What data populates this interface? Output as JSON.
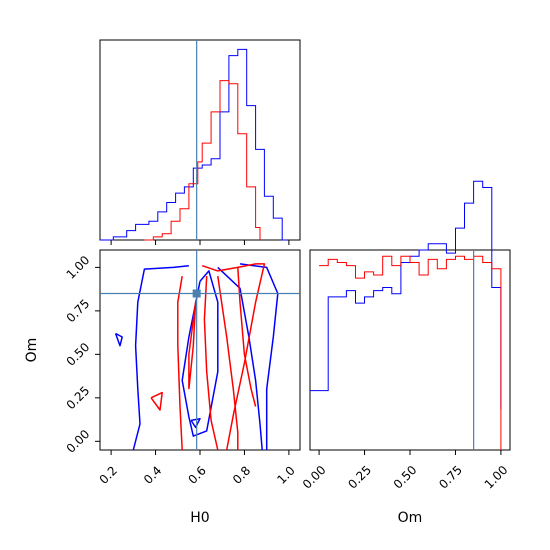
{
  "chart_data": [
    {
      "panel": "H0 marginal",
      "type": "step-histogram",
      "xlim": [
        0.15,
        1.05
      ],
      "truth": 0.585,
      "series": [
        {
          "color": "#0000ff",
          "x": [
            0.15,
            0.17,
            0.19,
            0.21,
            0.23,
            0.25,
            0.27,
            0.29,
            0.31,
            0.33,
            0.35,
            0.37,
            0.39,
            0.41,
            0.43,
            0.45,
            0.47,
            0.49,
            0.51,
            0.53,
            0.55,
            0.57,
            0.59,
            0.61,
            0.63,
            0.65,
            0.67,
            0.69,
            0.71,
            0.73,
            0.75,
            0.77,
            0.79,
            0.81,
            0.83,
            0.85,
            0.87,
            0.89,
            0.91,
            0.93,
            0.95,
            0.97,
            0.99
          ],
          "values": [
            0,
            0,
            0,
            0.01,
            0.01,
            0.01,
            0.03,
            0.03,
            0.05,
            0.05,
            0.05,
            0.06,
            0.06,
            0.09,
            0.09,
            0.12,
            0.12,
            0.15,
            0.15,
            0.17,
            0.17,
            0.23,
            0.23,
            0.24,
            0.24,
            0.26,
            0.26,
            0.41,
            0.41,
            0.59,
            0.59,
            0.61,
            0.61,
            0.43,
            0.43,
            0.29,
            0.29,
            0.14,
            0.14,
            0.07,
            0.07,
            0,
            0
          ]
        },
        {
          "color": "#ff0000",
          "x": [
            0.35,
            0.37,
            0.39,
            0.41,
            0.43,
            0.45,
            0.47,
            0.49,
            0.51,
            0.53,
            0.55,
            0.57,
            0.59,
            0.61,
            0.63,
            0.65,
            0.67,
            0.69,
            0.71,
            0.73,
            0.75,
            0.77,
            0.79,
            0.81,
            0.83,
            0.85,
            0.87
          ],
          "values": [
            0,
            0,
            0.01,
            0.01,
            0.02,
            0.02,
            0.06,
            0.06,
            0.1,
            0.1,
            0.18,
            0.18,
            0.25,
            0.31,
            0.31,
            0.41,
            0.41,
            0.51,
            0.51,
            0.5,
            0.5,
            0.34,
            0.34,
            0.17,
            0.17,
            0.04,
            0
          ]
        }
      ]
    },
    {
      "panel": "Om marginal",
      "type": "step-histogram",
      "xlim": [
        -0.05,
        1.05
      ],
      "truth": 0.85,
      "xlabel": "Om",
      "xticks": [
        "0.00",
        "0.25",
        "0.50",
        "0.75",
        "1.00"
      ],
      "series": [
        {
          "color": "#0000ff",
          "x": [
            -0.05,
            0.0,
            0.05,
            0.1,
            0.15,
            0.2,
            0.25,
            0.3,
            0.35,
            0.4,
            0.45,
            0.5,
            0.55,
            0.6,
            0.65,
            0.7,
            0.75,
            0.8,
            0.85,
            0.9,
            0.95,
            1.0
          ],
          "values": [
            0.19,
            0.19,
            0.49,
            0.49,
            0.51,
            0.47,
            0.49,
            0.51,
            0.52,
            0.5,
            0.6,
            0.62,
            0.64,
            0.66,
            0.66,
            0.63,
            0.71,
            0.79,
            0.86,
            0.84,
            0.52,
            0.13
          ]
        },
        {
          "color": "#ff0000",
          "x": [
            0.0,
            0.05,
            0.1,
            0.15,
            0.2,
            0.25,
            0.3,
            0.35,
            0.4,
            0.45,
            0.5,
            0.55,
            0.6,
            0.65,
            0.7,
            0.75,
            0.8,
            0.85,
            0.9,
            0.95,
            1.0
          ],
          "values": [
            0.59,
            0.61,
            0.6,
            0.59,
            0.55,
            0.57,
            0.56,
            0.62,
            0.59,
            0.62,
            0.6,
            0.56,
            0.61,
            0.58,
            0.61,
            0.62,
            0.61,
            0.62,
            0.6,
            0.58,
            0
          ]
        }
      ]
    },
    {
      "panel": "H0-Om joint",
      "type": "contour",
      "xlabel": "H0",
      "ylabel": "Om",
      "xlim": [
        0.15,
        1.05
      ],
      "ylim": [
        -0.05,
        1.1
      ],
      "xticks": [
        "0.2",
        "0.4",
        "0.6",
        "0.8",
        "1.0"
      ],
      "yticks": [
        "0.00",
        "0.25",
        "0.50",
        "0.75",
        "1.00"
      ],
      "truth": {
        "H0": 0.585,
        "Om": 0.85
      },
      "series": [
        {
          "color": "#0000ff",
          "contours": [
            [
              [
                0.3,
                -0.05
              ],
              [
                0.33,
                0.1
              ],
              [
                0.32,
                0.3
              ],
              [
                0.31,
                0.55
              ],
              [
                0.32,
                0.8
              ],
              [
                0.35,
                0.99
              ],
              [
                0.48,
                1.0
              ],
              [
                0.55,
                1.01
              ]
            ],
            [
              [
                0.22,
                0.62
              ],
              [
                0.24,
                0.55
              ],
              [
                0.25,
                0.6
              ],
              [
                0.22,
                0.62
              ]
            ],
            [
              [
                0.6,
                0.92
              ],
              [
                0.55,
                0.6
              ],
              [
                0.52,
                0.35
              ],
              [
                0.55,
                0.14
              ],
              [
                0.57,
                0.03
              ],
              [
                0.63,
                0.06
              ],
              [
                0.68,
                0.4
              ],
              [
                0.68,
                0.8
              ],
              [
                0.64,
                0.98
              ],
              [
                0.6,
                0.92
              ]
            ],
            [
              [
                0.56,
                0.12
              ],
              [
                0.58,
                0.08
              ],
              [
                0.6,
                0.13
              ],
              [
                0.56,
                0.12
              ]
            ],
            [
              [
                0.68,
                1.0
              ],
              [
                0.78,
                0.88
              ],
              [
                0.82,
                0.6
              ],
              [
                0.85,
                0.35
              ],
              [
                0.87,
                0.1
              ],
              [
                0.88,
                -0.05
              ]
            ],
            [
              [
                0.78,
                1.02
              ],
              [
                0.9,
                1.0
              ],
              [
                0.95,
                0.85
              ],
              [
                0.93,
                0.6
              ],
              [
                0.9,
                0.3
              ],
              [
                0.9,
                -0.05
              ]
            ]
          ]
        },
        {
          "color": "#ff0000",
          "contours": [
            [
              [
                0.52,
                -0.05
              ],
              [
                0.51,
                0.2
              ],
              [
                0.5,
                0.55
              ],
              [
                0.5,
                0.8
              ],
              [
                0.52,
                0.95
              ]
            ],
            [
              [
                0.61,
                1.01
              ],
              [
                0.68,
                0.98
              ],
              [
                0.77,
                1.0
              ],
              [
                0.85,
                1.02
              ],
              [
                0.89,
                1.02
              ],
              [
                0.85,
                0.8
              ],
              [
                0.8,
                0.45
              ],
              [
                0.75,
                0.15
              ],
              [
                0.72,
                -0.05
              ]
            ],
            [
              [
                0.55,
                0.3
              ],
              [
                0.57,
                0.55
              ],
              [
                0.58,
                0.8
              ],
              [
                0.55,
                0.5
              ],
              [
                0.55,
                0.3
              ]
            ],
            [
              [
                0.38,
                0.25
              ],
              [
                0.42,
                0.18
              ],
              [
                0.43,
                0.28
              ],
              [
                0.38,
                0.25
              ]
            ],
            [
              [
                0.63,
                0.95
              ],
              [
                0.62,
                0.7
              ],
              [
                0.63,
                0.4
              ],
              [
                0.65,
                0.12
              ],
              [
                0.68,
                -0.05
              ]
            ],
            [
              [
                0.68,
                0.95
              ],
              [
                0.72,
                0.6
              ],
              [
                0.75,
                0.3
              ],
              [
                0.77,
                0.05
              ],
              [
                0.77,
                -0.05
              ]
            ],
            [
              [
                0.77,
                1.0
              ],
              [
                0.78,
                0.8
              ],
              [
                0.8,
                0.5
              ],
              [
                0.83,
                0.3
              ],
              [
                0.85,
                0.2
              ]
            ]
          ]
        }
      ]
    }
  ]
}
